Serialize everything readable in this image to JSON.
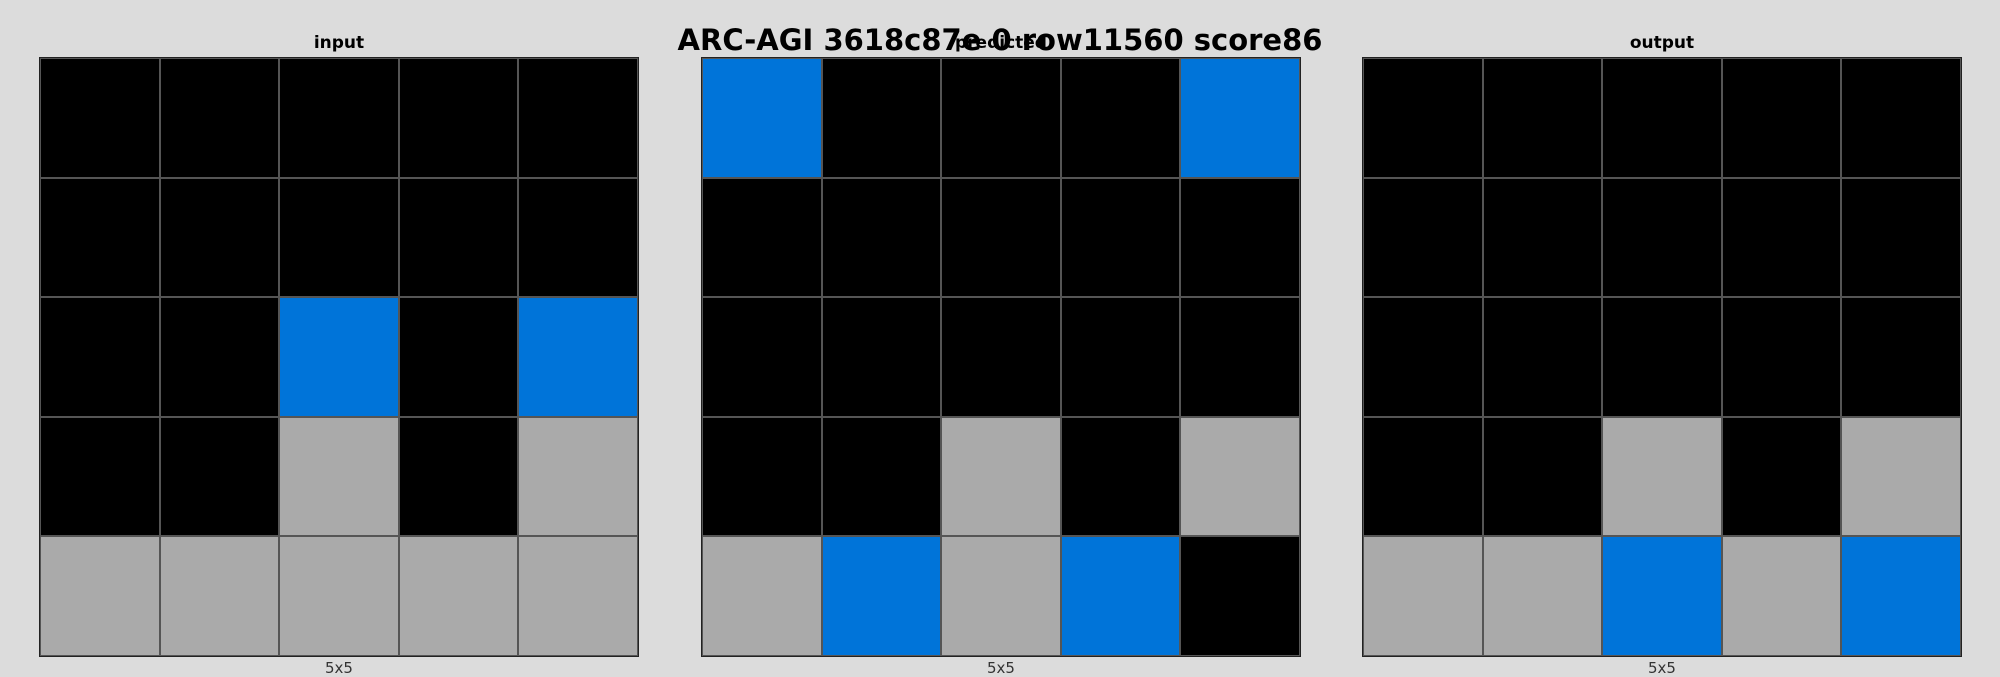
{
  "title": "ARC-AGI 3618c87e 0 row11560 score86",
  "palette": {
    "0": "#000000",
    "1": "#0074d9",
    "5": "#aaaaaa"
  },
  "panels": [
    {
      "title": "input",
      "size_label": "5x5",
      "rows": 5,
      "cols": 5,
      "grid": [
        [
          0,
          0,
          0,
          0,
          0
        ],
        [
          0,
          0,
          0,
          0,
          0
        ],
        [
          0,
          0,
          1,
          0,
          1
        ],
        [
          0,
          0,
          5,
          0,
          5
        ],
        [
          5,
          5,
          5,
          5,
          5
        ]
      ]
    },
    {
      "title": "predicted",
      "size_label": "5x5",
      "rows": 5,
      "cols": 5,
      "grid": [
        [
          1,
          0,
          0,
          0,
          1
        ],
        [
          0,
          0,
          0,
          0,
          0
        ],
        [
          0,
          0,
          0,
          0,
          0
        ],
        [
          0,
          0,
          5,
          0,
          5
        ],
        [
          5,
          1,
          5,
          1,
          0
        ]
      ]
    },
    {
      "title": "output",
      "size_label": "5x5",
      "rows": 5,
      "cols": 5,
      "grid": [
        [
          0,
          0,
          0,
          0,
          0
        ],
        [
          0,
          0,
          0,
          0,
          0
        ],
        [
          0,
          0,
          0,
          0,
          0
        ],
        [
          0,
          0,
          5,
          0,
          5
        ],
        [
          5,
          5,
          1,
          5,
          1
        ]
      ]
    }
  ]
}
